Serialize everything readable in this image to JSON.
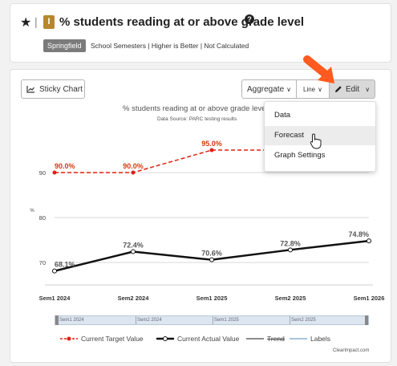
{
  "header": {
    "star_icon": "star-icon",
    "badge_letter": "I",
    "badge_color": "#b8862e",
    "title": "% students reading at or above grade level",
    "help_icon": "?",
    "tag": "Springfield",
    "meta": "School Semesters | Higher is Better | Not Calculated"
  },
  "toolbar": {
    "sticky_label": "Sticky Chart",
    "aggregate_label": "Aggregate",
    "line_label": "Line",
    "edit_label": "Edit"
  },
  "dropdown": {
    "items": [
      "Data",
      "Forecast",
      "Graph Settings"
    ],
    "hovered": "Forecast"
  },
  "chart_data": {
    "type": "line",
    "title": "% students reading at or above grade level",
    "subtitle": "Data Source: PARC testing results",
    "ylabel": "%",
    "ylim": [
      65,
      100
    ],
    "yticks": [
      70,
      80,
      90
    ],
    "categories": [
      "Sem1 2024",
      "Sem2 2024",
      "Sem1 2025",
      "Sem2 2025",
      "Sem1 2026"
    ],
    "series": [
      {
        "name": "Current Target Value",
        "color": "#e02010",
        "style": "dashed",
        "values": [
          90.0,
          90.0,
          95.0,
          95.0,
          95.0
        ],
        "labels": [
          "90.0%",
          "90.0%",
          "95.0%",
          "",
          ""
        ]
      },
      {
        "name": "Current Actual Value",
        "color": "#111111",
        "style": "solid",
        "values": [
          68.1,
          72.4,
          70.6,
          72.8,
          74.8
        ],
        "labels": [
          "68.1%",
          "72.4%",
          "70.6%",
          "72.8%",
          "74.8%"
        ]
      }
    ],
    "grid": true
  },
  "navigator": {
    "labels": [
      "Sem1 2024",
      "Sem2 2024",
      "Sem1 2025",
      "Sem2 2025"
    ]
  },
  "legend": {
    "items": [
      "Current Target Value",
      "Current Actual Value",
      "Trend",
      "Labels"
    ]
  },
  "credit": "ClearImpact.com"
}
